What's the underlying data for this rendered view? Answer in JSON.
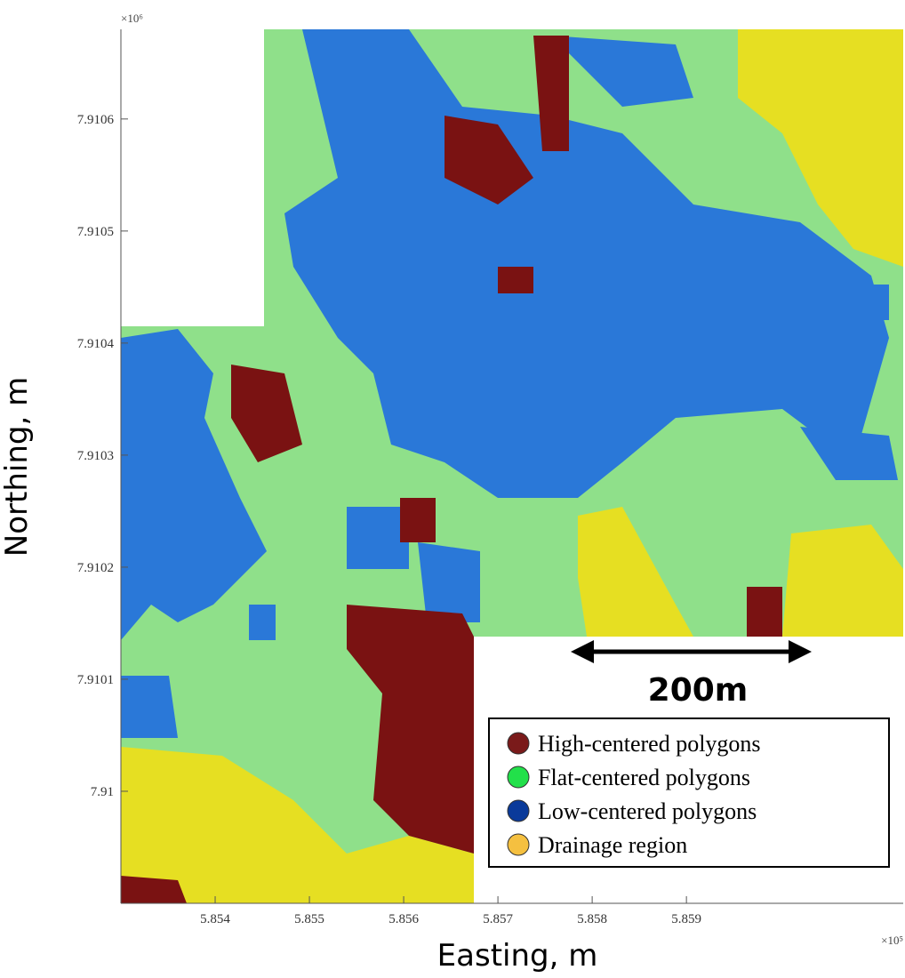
{
  "map": {
    "x_label": "Easting, m",
    "y_label": "Northing, m",
    "x_exponent": "×10⁵",
    "y_exponent": "×10⁶",
    "xlim": [
      5.853,
      5.8613
    ],
    "ylim": [
      7.9099,
      7.91068
    ],
    "xticks": [
      5.854,
      5.855,
      5.856,
      5.857,
      5.858,
      5.859
    ],
    "yticks": [
      7.91,
      7.9101,
      7.9102,
      7.9103,
      7.9104,
      7.9105,
      7.9106
    ],
    "scale_bar": "200m",
    "legend": [
      {
        "name": "High-centered polygons",
        "color": "#7a1a1a"
      },
      {
        "name": "Flat-centered polygons",
        "color": "#22e04a"
      },
      {
        "name": "Low-centered polygons",
        "color": "#0a3a9a"
      },
      {
        "name": "Drainage region",
        "color": "#f5c040"
      }
    ]
  }
}
